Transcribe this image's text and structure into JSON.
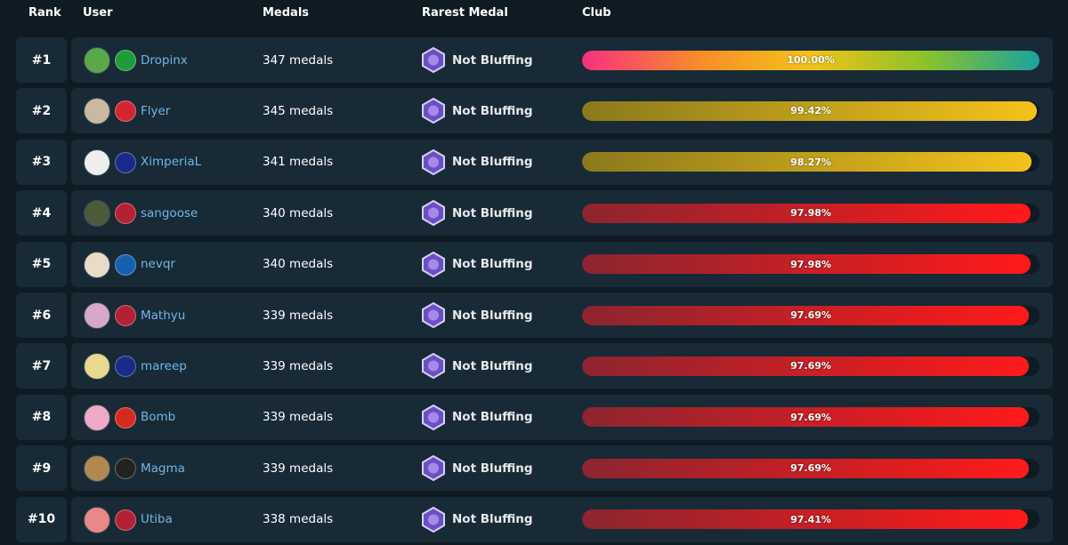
{
  "header": {
    "rank": "Rank",
    "user": "User",
    "medals": "Medals",
    "rarest_medal": "Rarest Medal",
    "club": "Club"
  },
  "rows": [
    {
      "rank": "#1",
      "user": "Dropinx",
      "medals": "347 medals",
      "rarest_medal": "Not Bluffing",
      "club": {
        "value": 100.0,
        "label": "100.00%"
      },
      "gradient": [
        "#f7307f",
        "#f98a2a",
        "#f2c318",
        "#8cc22c",
        "#1aa39c"
      ]
    },
    {
      "rank": "#2",
      "user": "Flyer",
      "medals": "345 medals",
      "rarest_medal": "Not Bluffing",
      "club": {
        "value": 99.42,
        "label": "99.42%"
      },
      "gradient": [
        "#8a7a1c",
        "#f4c21c"
      ]
    },
    {
      "rank": "#3",
      "user": "XimperiaL",
      "medals": "341 medals",
      "rarest_medal": "Not Bluffing",
      "club": {
        "value": 98.27,
        "label": "98.27%"
      },
      "gradient": [
        "#8a7a1c",
        "#f4c21c"
      ]
    },
    {
      "rank": "#4",
      "user": "sangoose",
      "medals": "340 medals",
      "rarest_medal": "Not Bluffing",
      "club": {
        "value": 97.98,
        "label": "97.98%"
      },
      "gradient": [
        "#8c2530",
        "#ff1a1a"
      ]
    },
    {
      "rank": "#5",
      "user": "nevqr",
      "medals": "340 medals",
      "rarest_medal": "Not Bluffing",
      "club": {
        "value": 97.98,
        "label": "97.98%"
      },
      "gradient": [
        "#8c2530",
        "#ff1a1a"
      ]
    },
    {
      "rank": "#6",
      "user": "Mathyu",
      "medals": "339 medals",
      "rarest_medal": "Not Bluffing",
      "club": {
        "value": 97.69,
        "label": "97.69%"
      },
      "gradient": [
        "#8c2530",
        "#ff1a1a"
      ]
    },
    {
      "rank": "#7",
      "user": "mareep",
      "medals": "339 medals",
      "rarest_medal": "Not Bluffing",
      "club": {
        "value": 97.69,
        "label": "97.69%"
      },
      "gradient": [
        "#8c2530",
        "#ff1a1a"
      ]
    },
    {
      "rank": "#8",
      "user": "Bomb",
      "medals": "339 medals",
      "rarest_medal": "Not Bluffing",
      "club": {
        "value": 97.69,
        "label": "97.69%"
      },
      "gradient": [
        "#8c2530",
        "#ff1a1a"
      ]
    },
    {
      "rank": "#9",
      "user": "Magma",
      "medals": "339 medals",
      "rarest_medal": "Not Bluffing",
      "club": {
        "value": 97.69,
        "label": "97.69%"
      },
      "gradient": [
        "#8c2530",
        "#ff1a1a"
      ]
    },
    {
      "rank": "#10",
      "user": "Utiba",
      "medals": "338 medals",
      "rarest_medal": "Not Bluffing",
      "club": {
        "value": 97.41,
        "label": "97.41%"
      },
      "gradient": [
        "#8c2530",
        "#ff1a1a"
      ]
    }
  ]
}
